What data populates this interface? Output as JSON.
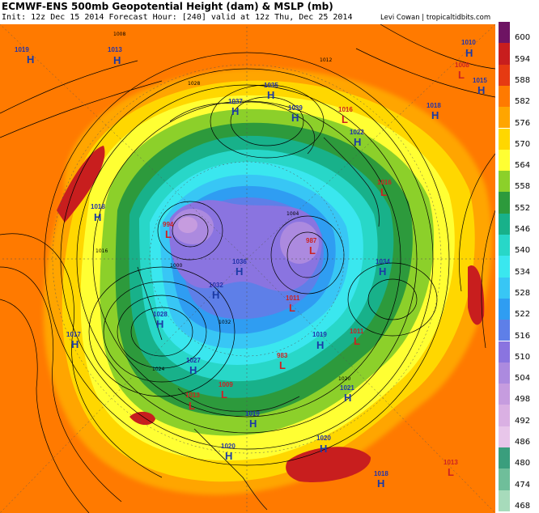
{
  "header": {
    "title": "ECMWF-ENS 500mb Geopotential Height (dam) & MSLP (mb)",
    "subtitle": "Init: 12z Dec 15 2014   Forecast Hour: [240]   valid at 12z Thu, Dec 25 2014",
    "credit": "Levi Cowan | tropicaltidbits.com"
  },
  "colorbar": {
    "levels": [
      "600",
      "594",
      "588",
      "582",
      "576",
      "570",
      "564",
      "558",
      "552",
      "546",
      "540",
      "534",
      "528",
      "522",
      "516",
      "510",
      "504",
      "498",
      "492",
      "486",
      "480",
      "474",
      "468"
    ],
    "colors": [
      "#6e1463",
      "#c81e1e",
      "#e63a12",
      "#ff7a00",
      "#ffa500",
      "#ffd700",
      "#ffff33",
      "#8cd02a",
      "#2d9a3c",
      "#18b18a",
      "#28d7c8",
      "#3ae7ef",
      "#38c6f5",
      "#2f9df2",
      "#5e7fe8",
      "#8a74e0",
      "#ac8adf",
      "#c69cdf",
      "#dab0e3",
      "#e8c6ea",
      "#3a9e7d",
      "#6fbe9a",
      "#a7dbbb"
    ]
  },
  "pressure_centers": [
    {
      "type": "H",
      "value": "1019"
    },
    {
      "type": "H",
      "value": "1013"
    },
    {
      "type": "H",
      "value": "1035"
    },
    {
      "type": "H",
      "value": "1010"
    },
    {
      "type": "L",
      "value": "1008"
    },
    {
      "type": "H",
      "value": "1015"
    },
    {
      "type": "H",
      "value": "1037"
    },
    {
      "type": "H",
      "value": "1039"
    },
    {
      "type": "L",
      "value": "1016"
    },
    {
      "type": "H",
      "value": "1022"
    },
    {
      "type": "H",
      "value": "1018"
    },
    {
      "type": "L",
      "value": "1016"
    },
    {
      "type": "H",
      "value": "1018"
    },
    {
      "type": "L",
      "value": "994"
    },
    {
      "type": "H",
      "value": "1036"
    },
    {
      "type": "L",
      "value": "987"
    },
    {
      "type": "H",
      "value": "1034"
    },
    {
      "type": "H",
      "value": "1032"
    },
    {
      "type": "L",
      "value": "1011"
    },
    {
      "type": "H",
      "value": "1017"
    },
    {
      "type": "H",
      "value": "1028"
    },
    {
      "type": "H",
      "value": "1019"
    },
    {
      "type": "L",
      "value": "1011"
    },
    {
      "type": "L",
      "value": "983"
    },
    {
      "type": "H",
      "value": "1027"
    },
    {
      "type": "L",
      "value": "1009"
    },
    {
      "type": "L",
      "value": "1013"
    },
    {
      "type": "H",
      "value": "1021"
    },
    {
      "type": "H",
      "value": "1019"
    },
    {
      "type": "H",
      "value": "1020"
    },
    {
      "type": "H",
      "value": "1020"
    },
    {
      "type": "H",
      "value": "1018"
    },
    {
      "type": "L",
      "value": "1013"
    }
  ],
  "isobar_labels": [
    "1008",
    "1012",
    "1016",
    "1020",
    "1024",
    "1028",
    "1032",
    "1000",
    "1004"
  ]
}
